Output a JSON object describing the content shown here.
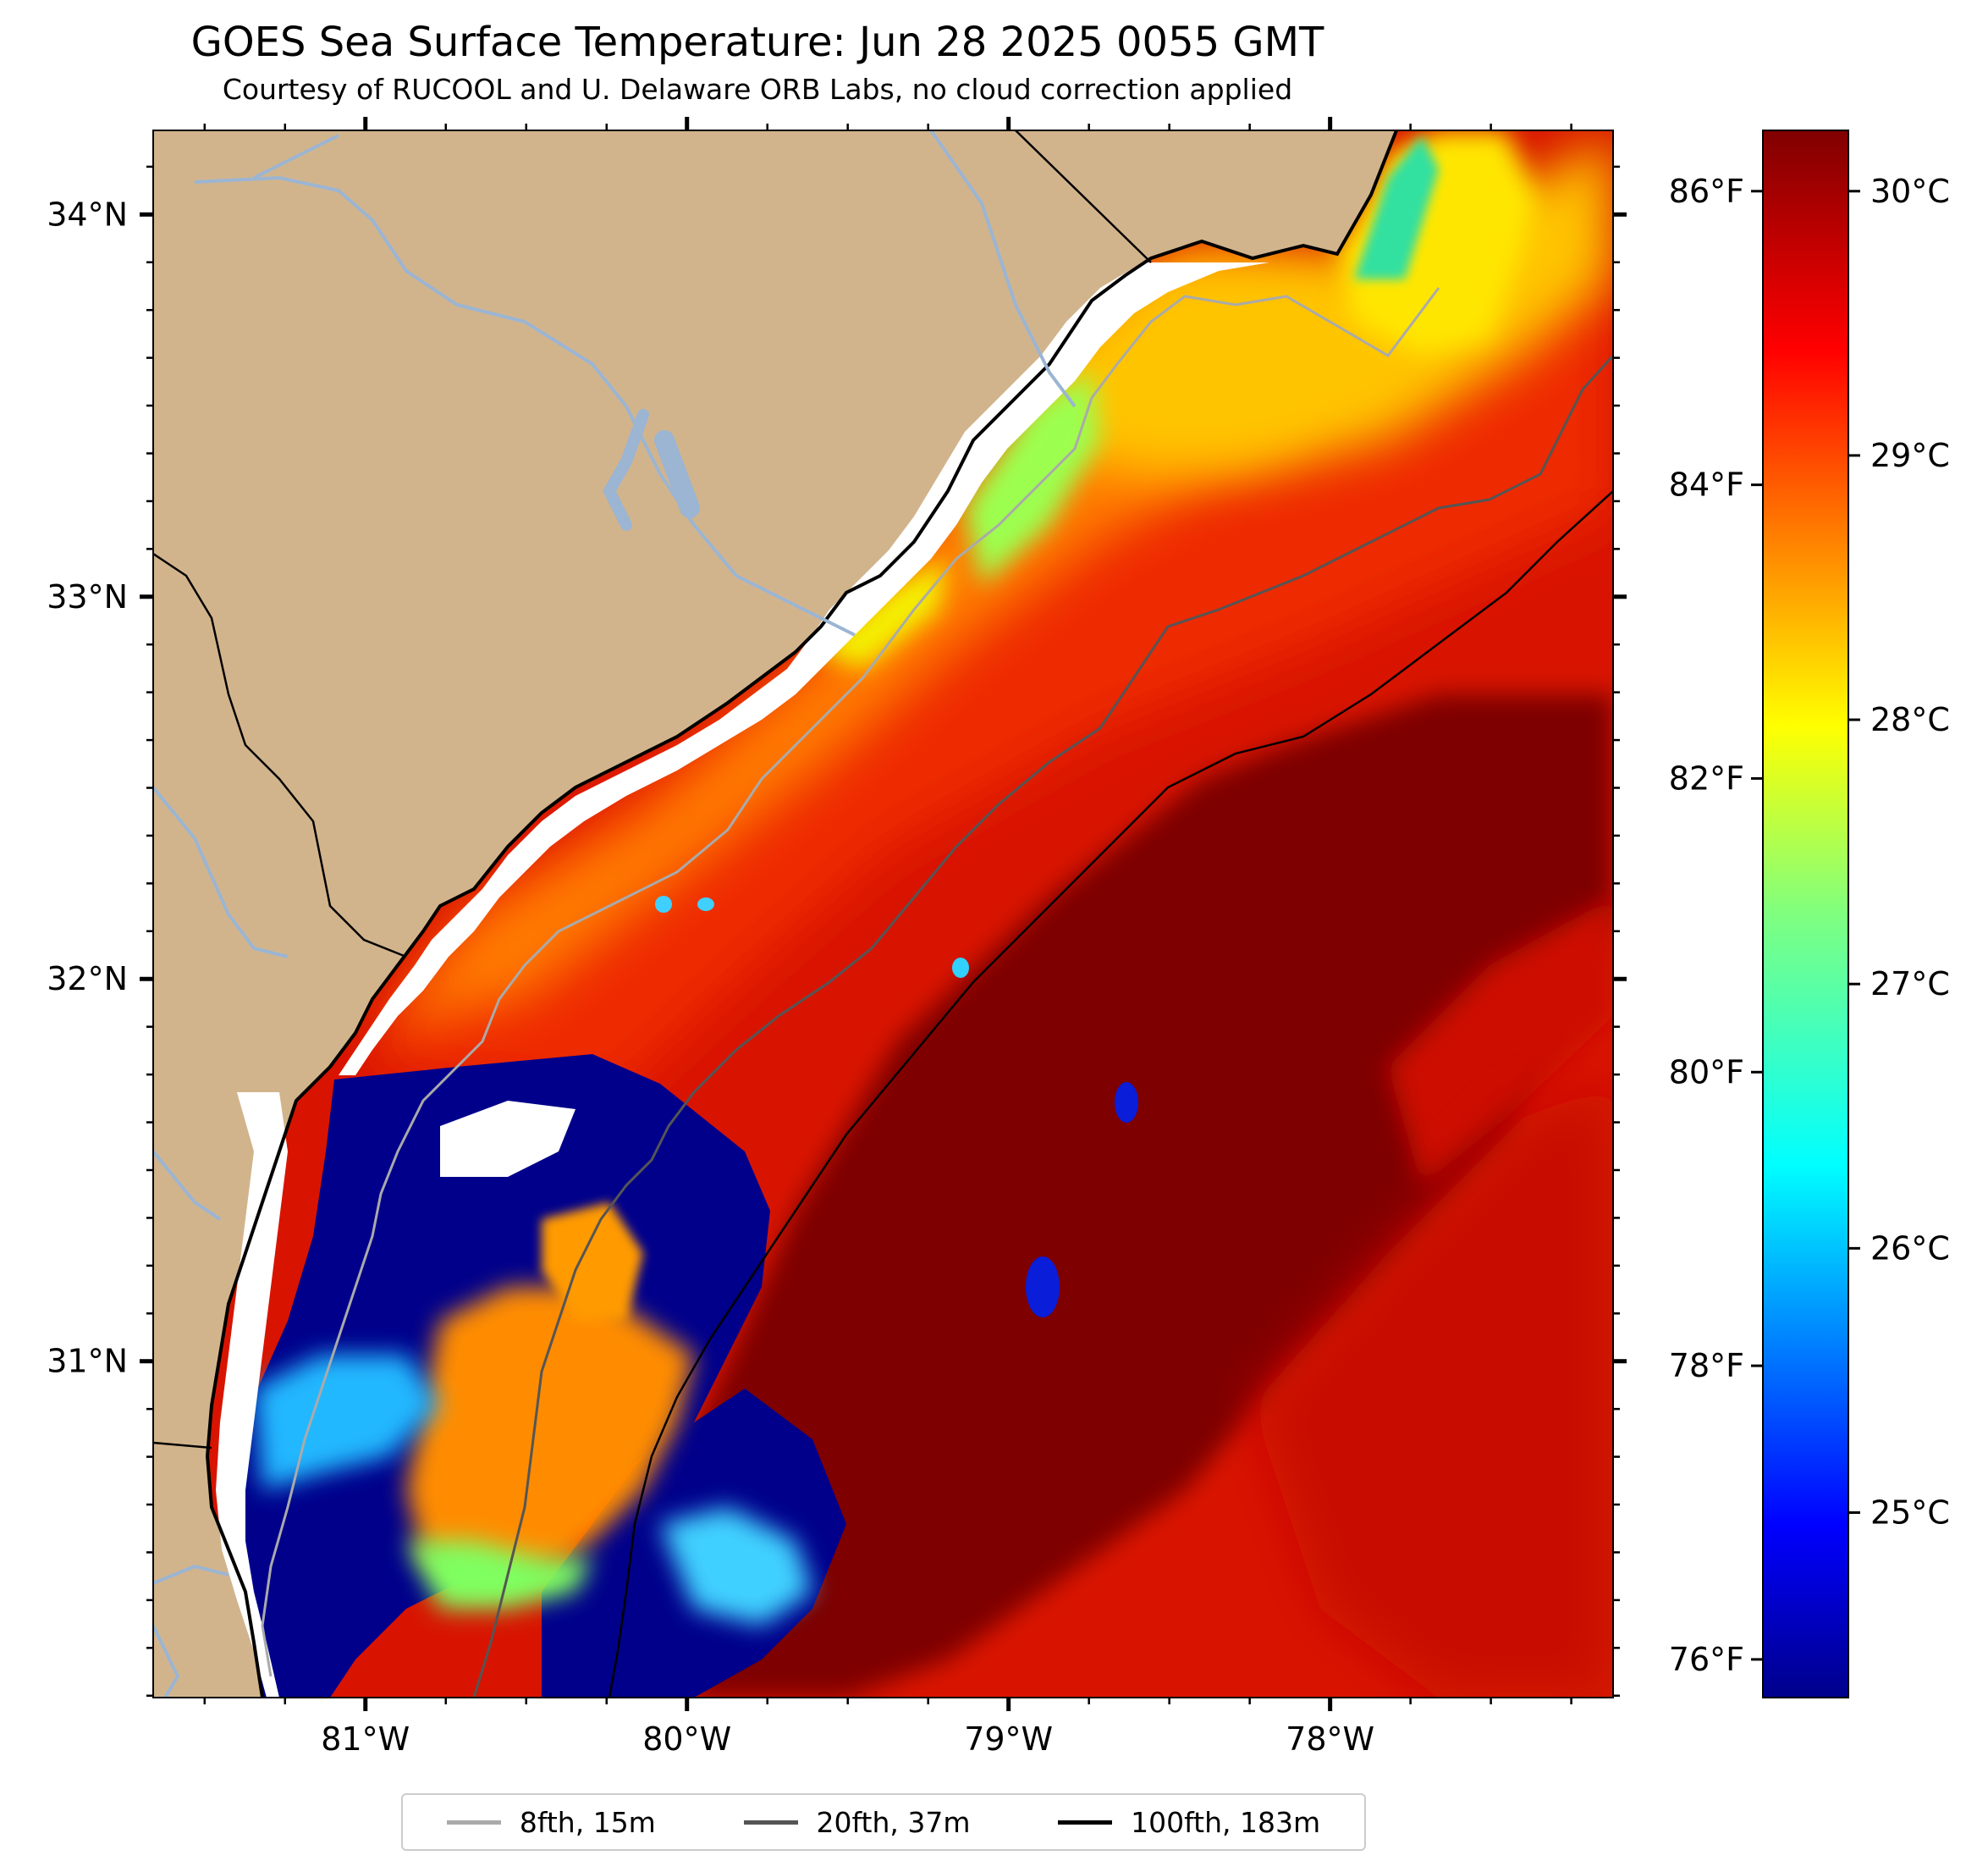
{
  "header": {
    "title": "GOES Sea Surface Temperature: Jun 28 2025 0055 GMT",
    "subtitle": "Courtesy of RUCOOL and U. Delaware ORB Labs, no cloud correction applied"
  },
  "colors": {
    "land": "#d2b48c",
    "rivers": "#9bb5d3",
    "no_data": "#ffffff",
    "cold": "#00008b",
    "warm": "#800000"
  },
  "map": {
    "projection": "lat-lon",
    "lon_range": [
      -81.66,
      -77.12
    ],
    "lat_range": [
      30.12,
      34.22
    ],
    "lon_ticks": [
      {
        "value": -81,
        "label": "81°W"
      },
      {
        "value": -80,
        "label": "80°W"
      },
      {
        "value": -79,
        "label": "79°W"
      },
      {
        "value": -78,
        "label": "78°W"
      }
    ],
    "lat_ticks": [
      {
        "value": 34,
        "label": "34°N"
      },
      {
        "value": 33,
        "label": "33°N"
      },
      {
        "value": 32,
        "label": "32°N"
      },
      {
        "value": 31,
        "label": "31°N"
      }
    ]
  },
  "colorbar": {
    "colormap": "jet",
    "celsius_range": [
      24.3,
      30.23
    ],
    "celsius_ticks": [
      {
        "value": 25,
        "label": "25°C"
      },
      {
        "value": 26,
        "label": "26°C"
      },
      {
        "value": 27,
        "label": "27°C"
      },
      {
        "value": 28,
        "label": "28°C"
      },
      {
        "value": 29,
        "label": "29°C"
      },
      {
        "value": 30,
        "label": "30°C"
      }
    ],
    "fahrenheit_ticks": [
      {
        "value": 76,
        "label": "76°F"
      },
      {
        "value": 78,
        "label": "78°F"
      },
      {
        "value": 80,
        "label": "80°F"
      },
      {
        "value": 82,
        "label": "82°F"
      },
      {
        "value": 84,
        "label": "84°F"
      },
      {
        "value": 86,
        "label": "86°F"
      }
    ]
  },
  "legend": {
    "items": [
      {
        "label": "8fth, 15m",
        "color": "#aaaaaa"
      },
      {
        "label": "20fth, 37m",
        "color": "#555555"
      },
      {
        "label": "100fth, 183m",
        "color": "#000000"
      }
    ]
  }
}
